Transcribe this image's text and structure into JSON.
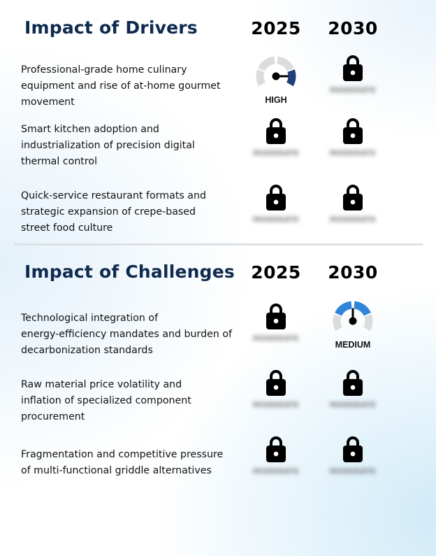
{
  "drivers": {
    "title": "Impact of Drivers",
    "year_1": "2025",
    "year_2": "2030",
    "rows": [
      {
        "text": "Professional-grade home culinary\nequipment and rise of at-home gourmet\nmovement",
        "y2025": {
          "type": "gauge",
          "label": "HIGH",
          "level": "high"
        },
        "y2030": {
          "type": "locked",
          "hidden_label": "MODERATE"
        }
      },
      {
        "text": "Smart kitchen adoption and\nindustrialization of precision digital\nthermal control",
        "y2025": {
          "type": "locked",
          "hidden_label": "MODERATE"
        },
        "y2030": {
          "type": "locked",
          "hidden_label": "MODERATE"
        }
      },
      {
        "text": "Quick-service restaurant formats and\nstrategic expansion of crepe-based\nstreet food culture",
        "y2025": {
          "type": "locked",
          "hidden_label": "MODERATE"
        },
        "y2030": {
          "type": "locked",
          "hidden_label": "MODERATE"
        }
      }
    ]
  },
  "challenges": {
    "title": "Impact of Challenges",
    "year_1": "2025",
    "year_2": "2030",
    "rows": [
      {
        "text": "Technological integration of\nenergy-efficiency mandates and burden of\ndecarbonization standards",
        "y2025": {
          "type": "locked",
          "hidden_label": "MODERATE"
        },
        "y2030": {
          "type": "gauge",
          "label": "MEDIUM",
          "level": "medium"
        }
      },
      {
        "text": "Raw material price volatility and\ninflation of specialized component\nprocurement",
        "y2025": {
          "type": "locked",
          "hidden_label": "MODERATE"
        },
        "y2030": {
          "type": "locked",
          "hidden_label": "MODERATE"
        }
      },
      {
        "text": "Fragmentation and competitive pressure\nof multi-functional griddle alternatives",
        "y2025": {
          "type": "locked",
          "hidden_label": "MODERATE"
        },
        "y2030": {
          "type": "locked",
          "hidden_label": "MODERATE"
        }
      }
    ]
  },
  "colors": {
    "title": "#0f2a4f",
    "gauge_high": "#1e3f78",
    "gauge_medium": "#2f86d8",
    "gauge_track": "#dcdcdc"
  },
  "icons": {
    "locked": "lock-icon",
    "gauge": "gauge-icon"
  }
}
